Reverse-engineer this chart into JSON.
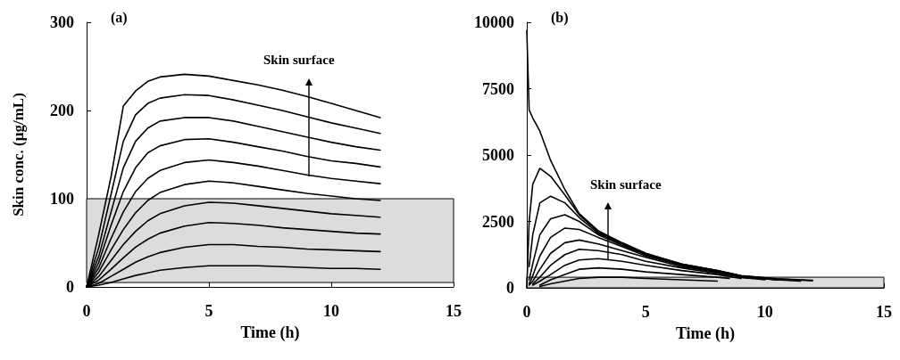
{
  "chart_data": [
    {
      "type": "line",
      "title": "(a)",
      "xlabel": "Time (h)",
      "ylabel": "Skin conc. (µg/mL)",
      "xlim": [
        0,
        15
      ],
      "xticks": [
        0,
        5,
        10,
        15
      ],
      "ylim": [
        0,
        300
      ],
      "yticks": [
        0,
        100,
        200,
        300
      ],
      "x": [
        0,
        0.5,
        1,
        1.5,
        2,
        2.5,
        3,
        4,
        5,
        6,
        7,
        8,
        9,
        10,
        11,
        12
      ],
      "series": [
        {
          "color": "#000000",
          "values": [
            0,
            60,
            125,
            205,
            222,
            233,
            238,
            241,
            239,
            234,
            229,
            223,
            216,
            208,
            200,
            192
          ]
        },
        {
          "color": "#000000",
          "values": [
            0,
            45,
            105,
            165,
            195,
            208,
            214,
            218,
            217,
            212,
            206,
            200,
            193,
            186,
            180,
            174
          ]
        },
        {
          "color": "#000000",
          "values": [
            0,
            35,
            85,
            135,
            165,
            180,
            188,
            192,
            192,
            188,
            182,
            176,
            170,
            164,
            159,
            155
          ]
        },
        {
          "color": "#000000",
          "values": [
            0,
            28,
            70,
            108,
            135,
            152,
            160,
            167,
            168,
            164,
            159,
            154,
            148,
            143,
            140,
            136
          ]
        },
        {
          "color": "#000000",
          "values": [
            0,
            22,
            55,
            85,
            108,
            123,
            132,
            141,
            144,
            141,
            137,
            132,
            127,
            123,
            120,
            117
          ]
        },
        {
          "color": "#000000",
          "values": [
            0,
            17,
            42,
            65,
            84,
            98,
            107,
            116,
            120,
            118,
            114,
            110,
            106,
            103,
            100,
            98
          ]
        },
        {
          "color": "#000000",
          "values": [
            0,
            12,
            30,
            48,
            63,
            75,
            83,
            92,
            96,
            95,
            92,
            89,
            86,
            83,
            81,
            79
          ]
        },
        {
          "color": "#000000",
          "values": [
            0,
            8,
            20,
            33,
            45,
            54,
            61,
            69,
            73,
            72,
            70,
            67,
            65,
            63,
            61,
            60
          ]
        },
        {
          "color": "#000000",
          "values": [
            0,
            4,
            12,
            20,
            28,
            34,
            39,
            45,
            48,
            48,
            46,
            45,
            43,
            42,
            41,
            40
          ]
        },
        {
          "color": "#000000",
          "values": [
            0,
            2,
            5,
            9,
            13,
            16,
            19,
            22,
            24,
            24,
            24,
            23,
            22,
            21,
            21,
            20
          ]
        }
      ],
      "bands": [
        {
          "axis": "y",
          "from": 5,
          "to": 100,
          "color": "#dcdcdc"
        }
      ],
      "annotations": [
        "Skin surface"
      ]
    },
    {
      "type": "line",
      "title": "(b)",
      "xlabel": "Time (h)",
      "xlim": [
        0,
        15
      ],
      "xticks": [
        0,
        5,
        10,
        15
      ],
      "ylim": [
        0,
        10000
      ],
      "yticks": [
        0,
        2500,
        5000,
        7500,
        10000
      ],
      "x": [
        0,
        0.1,
        0.25,
        0.55,
        1,
        1.6,
        2.2,
        3,
        4,
        5,
        6.5,
        8,
        9,
        10.5,
        12
      ],
      "series": [
        {
          "color": "#000000",
          "values": [
            9700,
            6700,
            6400,
            5900,
            4800,
            3700,
            2800,
            2150,
            1700,
            1300,
            900,
            650,
            460,
            340,
            280
          ]
        },
        {
          "color": "#000000",
          "values": [
            0,
            2500,
            3900,
            4500,
            4200,
            3500,
            2750,
            2100,
            1680,
            1290,
            890,
            640,
            450,
            330,
            270
          ]
        },
        {
          "color": "#000000",
          "x": [
            0.1,
            0.25,
            0.55,
            1,
            1.6,
            2.2,
            3,
            4,
            5,
            6.5,
            8,
            9,
            10.5,
            11.5
          ],
          "values": [
            800,
            2000,
            3200,
            3450,
            3200,
            2650,
            2050,
            1650,
            1250,
            900,
            650,
            450,
            300,
            250
          ]
        },
        {
          "color": "#000000",
          "x": [
            0.1,
            0.25,
            0.55,
            1,
            1.6,
            2.2,
            3,
            4,
            5,
            6.5,
            8,
            9,
            10.5,
            11
          ],
          "values": [
            300,
            900,
            2000,
            2600,
            2750,
            2500,
            2000,
            1600,
            1250,
            850,
            600,
            450,
            300,
            300
          ]
        },
        {
          "color": "#000000",
          "x": [
            0.1,
            0.25,
            0.55,
            1,
            1.6,
            2.2,
            3,
            4,
            5,
            6.5,
            8,
            9,
            10.5
          ],
          "values": [
            150,
            450,
            1200,
            1900,
            2250,
            2200,
            1900,
            1550,
            1200,
            850,
            600,
            400,
            300
          ]
        },
        {
          "color": "#000000",
          "x": [
            0.1,
            0.25,
            0.55,
            1,
            1.6,
            2.2,
            3,
            4,
            5,
            6.5,
            8,
            9,
            10
          ],
          "values": [
            100,
            250,
            700,
            1300,
            1700,
            1800,
            1650,
            1400,
            1150,
            800,
            600,
            400,
            300
          ]
        },
        {
          "color": "#000000",
          "x": [
            0.25,
            0.55,
            1,
            1.6,
            2.2,
            3,
            4,
            5,
            6.5,
            8,
            9,
            9.5
          ],
          "values": [
            150,
            400,
            850,
            1250,
            1450,
            1400,
            1250,
            1000,
            750,
            550,
            400,
            350
          ]
        },
        {
          "color": "#000000",
          "x": [
            0.25,
            0.55,
            1,
            1.6,
            2.2,
            3,
            4,
            5,
            6.5,
            8,
            9
          ],
          "values": [
            100,
            250,
            500,
            850,
            1050,
            1100,
            1000,
            850,
            650,
            500,
            350
          ]
        },
        {
          "color": "#000000",
          "x": [
            0.55,
            1,
            1.6,
            2.2,
            3,
            4,
            5,
            6.5,
            8,
            8.5
          ],
          "values": [
            100,
            300,
            500,
            700,
            750,
            700,
            600,
            500,
            400,
            350
          ]
        },
        {
          "color": "#000000",
          "x": [
            0.55,
            1,
            1.6,
            2.2,
            3,
            4,
            5,
            6.5,
            8
          ],
          "values": [
            50,
            150,
            250,
            350,
            400,
            400,
            350,
            300,
            250
          ]
        }
      ],
      "bands": [
        {
          "axis": "y",
          "from": 0,
          "to": 400,
          "color": "#dcdcdc"
        }
      ],
      "annotations": [
        {
          "text": "Skin surface",
          "x": 3.4,
          "y": 1050
        }
      ]
    }
  ]
}
